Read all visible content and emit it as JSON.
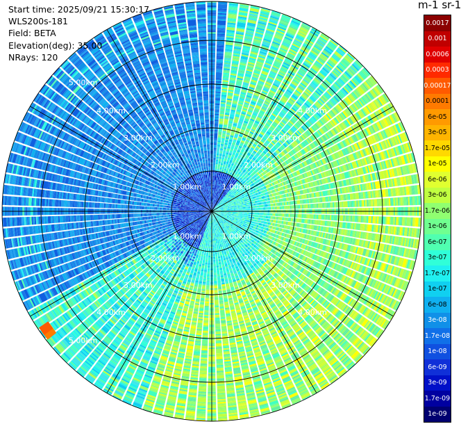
{
  "info": {
    "start_time": "Start time: 2025/09/21 15:30:17",
    "device": "WLS200s-181",
    "field": "Field: BETA",
    "elevation": "Elevation(deg): 35.00",
    "nrays": "NRays: 120"
  },
  "chart_data": {
    "type": "heatmap",
    "title": "",
    "projection": "polar",
    "ring_labels": [
      "1.00km",
      "2.00km",
      "3.00km",
      "4.00km",
      "5.00km"
    ],
    "max_range_km": 6.0,
    "n_rays": 120,
    "colorbar": {
      "title": "m-1 sr-1",
      "ticks": [
        "0.0017",
        "0.001",
        "0.0006",
        "0.0003",
        "0.00017",
        "0.0001",
        "6e-05",
        "3e-05",
        "1.7e-05",
        "1e-05",
        "6e-06",
        "3e-06",
        "1.7e-06",
        "1e-06",
        "6e-07",
        "3e-07",
        "1.7e-07",
        "1e-07",
        "6e-08",
        "3e-08",
        "1.7e-08",
        "1e-08",
        "6e-09",
        "3e-09",
        "1.7e-09",
        "1e-09"
      ],
      "colors": [
        "#8b0000",
        "#c00000",
        "#e00000",
        "#ff2a00",
        "#ff5a00",
        "#ff7a00",
        "#ff9a00",
        "#ffb400",
        "#ffd800",
        "#ffff00",
        "#e0ff30",
        "#c0ff40",
        "#90ff70",
        "#70ff90",
        "#50ffb0",
        "#30ffd8",
        "#20f0f0",
        "#10d0f0",
        "#10b0f0",
        "#1090e8",
        "#1070e8",
        "#1050e0",
        "#1030d8",
        "#0010c8",
        "#0000a0",
        "#000070"
      ]
    }
  }
}
